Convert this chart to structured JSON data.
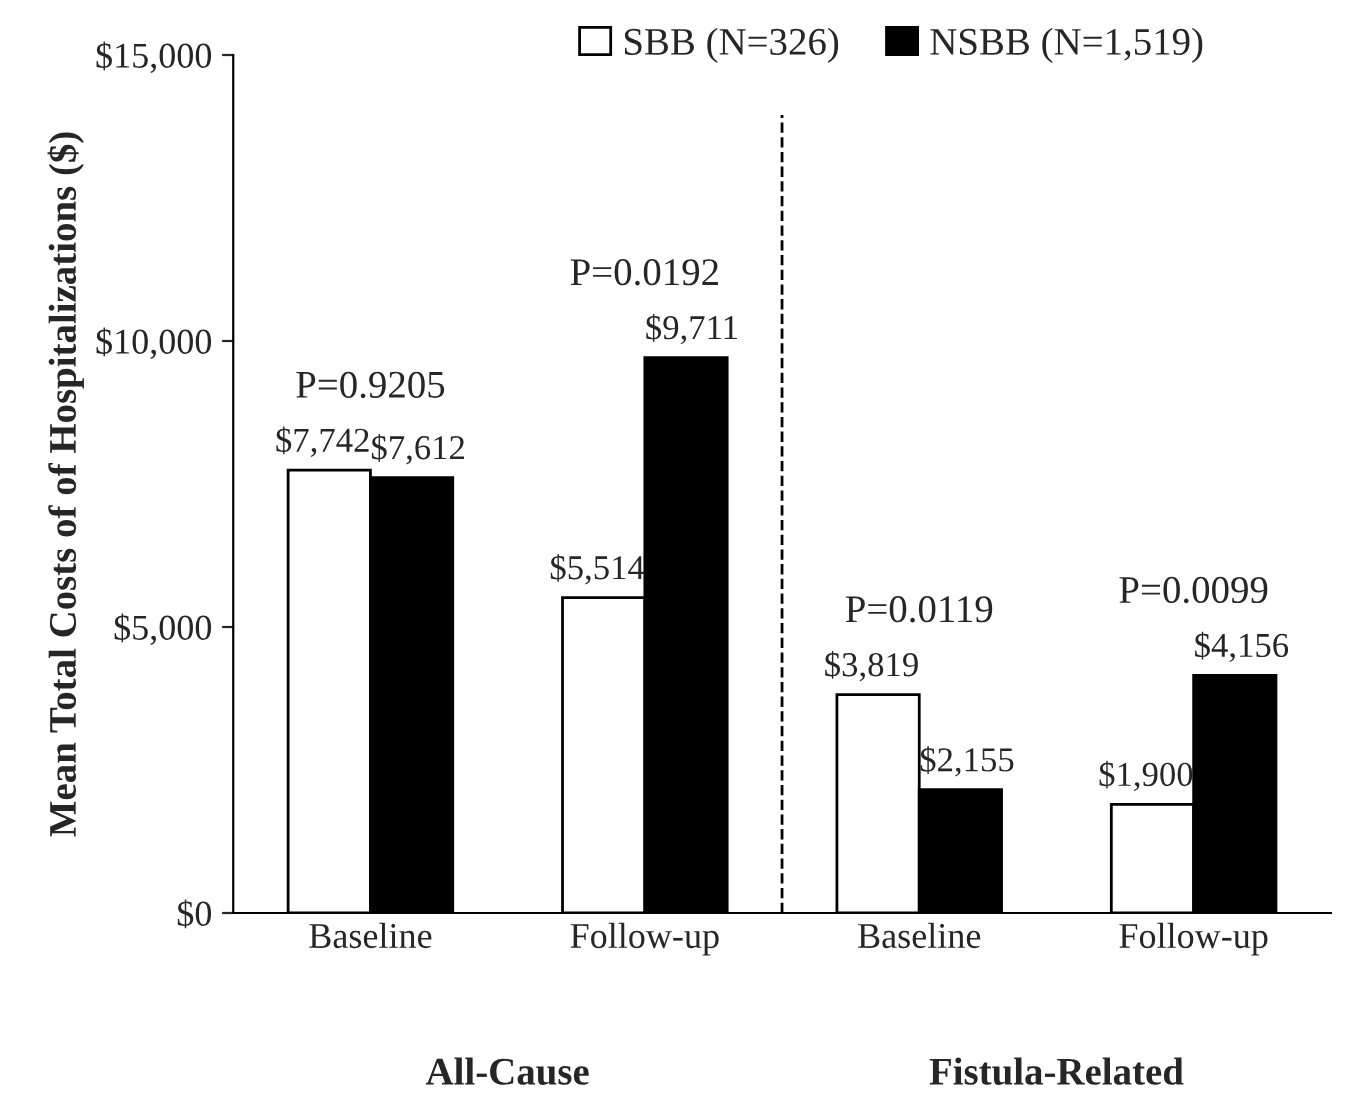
{
  "chart_data": {
    "type": "bar",
    "ylabel": "Mean Total Costs of of Hospitalizations ($)",
    "categories": [
      "Baseline",
      "Follow-up",
      "Baseline",
      "Follow-up"
    ],
    "series": [
      {
        "name": "SBB (N=326)",
        "color": "#ffffff",
        "values": [
          7742,
          5514,
          3819,
          1900
        ],
        "value_labels": [
          "$7,742",
          "$5,514",
          "$3,819",
          "$1,900"
        ]
      },
      {
        "name": "NSBB (N=1,519)",
        "color": "#000000",
        "values": [
          7612,
          9711,
          2155,
          4156
        ],
        "value_labels": [
          "$7,612",
          "$9,711",
          "$2,155",
          "$4,156"
        ]
      }
    ],
    "annotations": [
      "P=0.9205",
      "P=0.0192",
      "P=0.0119",
      "P=0.0099",
      "All-Cause",
      "Fistula-Related"
    ],
    "ylim": [
      0,
      15000
    ],
    "yticks": [
      {
        "value": 0,
        "label": "$0"
      },
      {
        "value": 5000,
        "label": "$5,000"
      },
      {
        "value": 10000,
        "label": "$10,000"
      },
      {
        "value": 15000,
        "label": "$15,000"
      }
    ],
    "grid": false,
    "legend": "top"
  }
}
